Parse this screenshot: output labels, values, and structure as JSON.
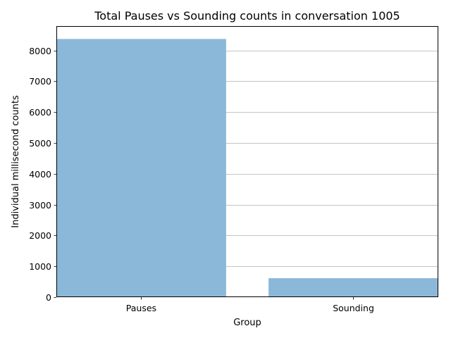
{
  "chart_data": {
    "type": "bar",
    "title": "Total Pauses vs Sounding counts in conversation 1005",
    "xlabel": "Group",
    "ylabel": "Individual millisecond counts",
    "categories": [
      "Pauses",
      "Sounding"
    ],
    "values": [
      8370,
      615
    ],
    "ylim": [
      0,
      8789
    ],
    "yticks": [
      0,
      1000,
      2000,
      3000,
      4000,
      5000,
      6000,
      7000,
      8000
    ],
    "grid": "horizontal",
    "bar_color": "#8bb8d9"
  }
}
